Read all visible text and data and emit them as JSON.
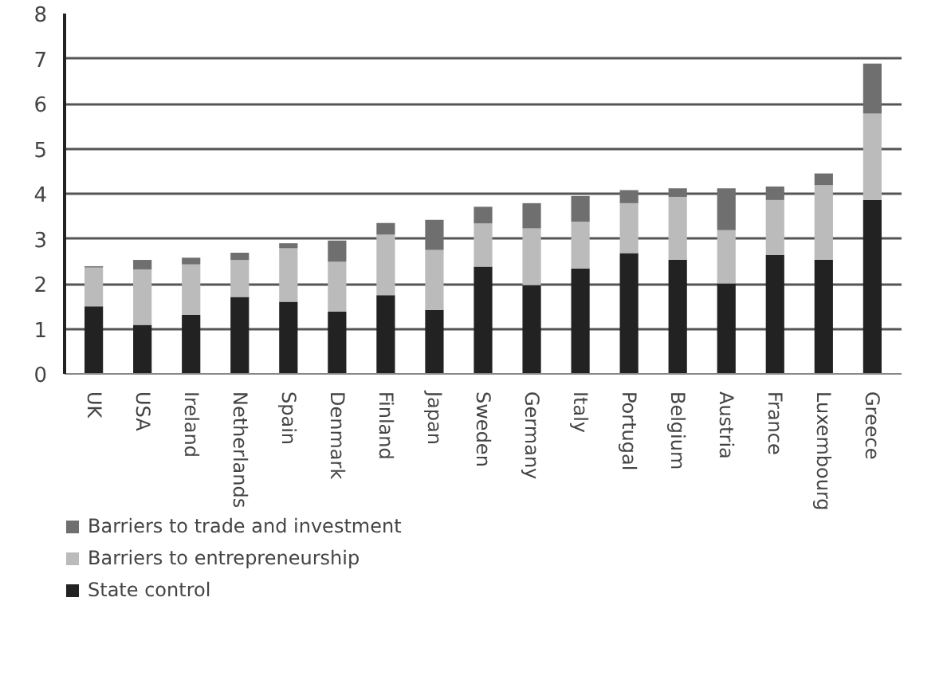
{
  "chart_data": {
    "type": "bar",
    "stacked": true,
    "categories": [
      "UK",
      "USA",
      "Ireland",
      "Netherlands",
      "Spain",
      "Denmark",
      "Finland",
      "Japan",
      "Sweden",
      "Germany",
      "Italy",
      "Portugal",
      "Belgium",
      "Austria",
      "France",
      "Luxembourg",
      "Greece"
    ],
    "series": [
      {
        "name": "State control",
        "color": "#222222",
        "values": [
          1.5,
          1.09,
          1.31,
          1.71,
          1.6,
          1.38,
          1.75,
          1.42,
          2.38,
          1.97,
          2.34,
          2.68,
          2.53,
          2.01,
          2.64,
          2.53,
          3.86
        ]
      },
      {
        "name": "Barriers to entrepreneurship",
        "color": "#bbbbbb",
        "values": [
          0.86,
          1.23,
          1.12,
          0.82,
          1.19,
          1.11,
          1.34,
          1.33,
          0.96,
          1.26,
          1.04,
          1.11,
          1.4,
          1.18,
          1.22,
          1.66,
          1.92
        ]
      },
      {
        "name": "Barriers to trade and investment",
        "color": "#6f6f6f",
        "values": [
          0.03,
          0.21,
          0.15,
          0.16,
          0.11,
          0.47,
          0.26,
          0.67,
          0.37,
          0.56,
          0.57,
          0.29,
          0.19,
          0.93,
          0.3,
          0.26,
          1.11
        ]
      }
    ],
    "ylim": [
      0,
      8
    ],
    "yticks": [
      0,
      1,
      2,
      3,
      4,
      5,
      6,
      7,
      8
    ],
    "grid": "y",
    "legend": "bottom left"
  }
}
